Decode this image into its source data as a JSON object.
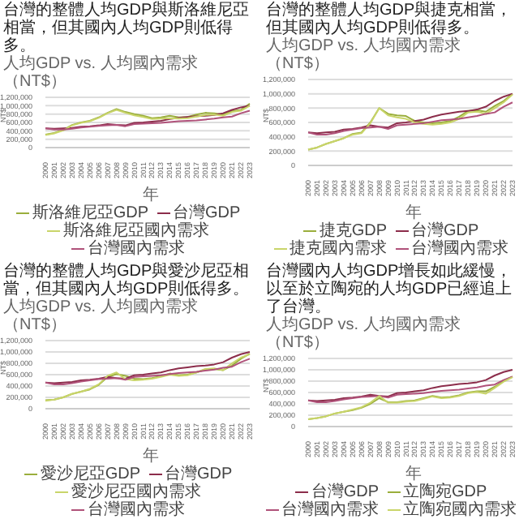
{
  "chart_data": [
    {
      "type": "line",
      "title": "台灣的整體人均GDP與斯洛維尼亞相當，但其國內人均GDP則低得多。",
      "subtitle": "人均GDP vs. 人均國內需求（NT$）",
      "xlabel": "年",
      "ylabel": "NT$",
      "categories": [
        "2000",
        "2001",
        "2002",
        "2003",
        "2004",
        "2005",
        "2006",
        "2007",
        "2008",
        "2009",
        "2010",
        "2011",
        "2012",
        "2013",
        "2014",
        "2015",
        "2016",
        "2017",
        "2018",
        "2019",
        "2020",
        "2021",
        "2022",
        "2023"
      ],
      "series": [
        {
          "name": "斯洛維尼亞GDP",
          "color": "#9aae3c",
          "values": [
            310000,
            350000,
            420000,
            540000,
            600000,
            640000,
            720000,
            830000,
            920000,
            850000,
            800000,
            760000,
            700000,
            720000,
            760000,
            720000,
            730000,
            790000,
            830000,
            820000,
            790000,
            870000,
            900000,
            1050000
          ]
        },
        {
          "name": "台灣GDP",
          "color": "#8c2d4b",
          "values": [
            460000,
            450000,
            460000,
            470000,
            500000,
            510000,
            530000,
            560000,
            540000,
            530000,
            590000,
            600000,
            620000,
            640000,
            680000,
            710000,
            730000,
            750000,
            760000,
            780000,
            820000,
            900000,
            960000,
            1000000
          ]
        },
        {
          "name": "斯洛維尼亞國內需求",
          "color": "#c9d56a",
          "values": [
            300000,
            340000,
            410000,
            530000,
            590000,
            630000,
            710000,
            820000,
            900000,
            830000,
            770000,
            730000,
            680000,
            690000,
            700000,
            690000,
            700000,
            740000,
            780000,
            790000,
            760000,
            850000,
            880000,
            1000000
          ]
        },
        {
          "name": "台灣國內需求",
          "color": "#b0527a",
          "values": [
            460000,
            430000,
            430000,
            450000,
            480000,
            500000,
            520000,
            530000,
            540000,
            510000,
            560000,
            570000,
            580000,
            590000,
            610000,
            630000,
            640000,
            650000,
            670000,
            690000,
            720000,
            740000,
            820000,
            880000
          ]
        }
      ],
      "ylim": [
        0,
        1200000
      ],
      "yticks": [
        {
          "value": 0,
          "label": "0"
        },
        {
          "value": 200000,
          "label": "200,000"
        },
        {
          "value": 400000,
          "label": "400,000"
        },
        {
          "value": 600000,
          "label": "600,000"
        },
        {
          "value": 800000,
          "label": "800,000"
        },
        {
          "value": 1000000,
          "label": "1,000,000"
        },
        {
          "value": 1200000,
          "label": "1,200,000"
        }
      ],
      "grid": "y",
      "legend": "bottom"
    },
    {
      "type": "line",
      "title": "台灣的整體人均GDP與捷克相當，但其國內人均GDP則低得多。",
      "subtitle": "人均GDP vs. 人均國內需求（NT$）",
      "xlabel": "年",
      "ylabel": "NT$",
      "categories": [
        "2000",
        "2001",
        "2002",
        "2003",
        "2004",
        "2005",
        "2006",
        "2007",
        "2008",
        "2009",
        "2010",
        "2011",
        "2012",
        "2013",
        "2014",
        "2015",
        "2016",
        "2017",
        "2018",
        "2019",
        "2020",
        "2021",
        "2022",
        "2023"
      ],
      "series": [
        {
          "name": "捷克GDP",
          "color": "#9aae3c",
          "values": [
            220000,
            250000,
            300000,
            340000,
            380000,
            440000,
            460000,
            600000,
            800000,
            720000,
            700000,
            690000,
            620000,
            600000,
            590000,
            600000,
            620000,
            680000,
            760000,
            770000,
            750000,
            830000,
            900000,
            1000000
          ]
        },
        {
          "name": "台灣GDP",
          "color": "#8c2d4b",
          "values": [
            460000,
            450000,
            460000,
            470000,
            500000,
            510000,
            530000,
            560000,
            540000,
            530000,
            590000,
            600000,
            620000,
            640000,
            680000,
            710000,
            730000,
            750000,
            760000,
            780000,
            820000,
            900000,
            960000,
            1000000
          ]
        },
        {
          "name": "捷克國內需求",
          "color": "#c9d56a",
          "values": [
            220000,
            250000,
            300000,
            340000,
            380000,
            430000,
            450000,
            590000,
            800000,
            700000,
            670000,
            650000,
            600000,
            580000,
            570000,
            580000,
            600000,
            650000,
            740000,
            750000,
            720000,
            800000,
            880000,
            990000
          ]
        },
        {
          "name": "台灣國內需求",
          "color": "#b0527a",
          "values": [
            460000,
            430000,
            430000,
            450000,
            480000,
            500000,
            520000,
            530000,
            540000,
            510000,
            560000,
            570000,
            580000,
            590000,
            610000,
            630000,
            640000,
            650000,
            670000,
            690000,
            720000,
            740000,
            820000,
            880000
          ]
        }
      ],
      "ylim": [
        0,
        1200000
      ],
      "yticks": [
        {
          "value": 0,
          "label": "0"
        },
        {
          "value": 200000,
          "label": "200,000"
        },
        {
          "value": 400000,
          "label": "400,000"
        },
        {
          "value": 600000,
          "label": "600,000"
        },
        {
          "value": 800000,
          "label": "800,000"
        },
        {
          "value": 1000000,
          "label": "1,000,000"
        },
        {
          "value": 1200000,
          "label": "1,200,000"
        }
      ],
      "grid": "y",
      "legend": "bottom"
    },
    {
      "type": "line",
      "title": "台灣的整體人均GDP與愛沙尼亞相當，但其國內人均GDP則低得多。",
      "subtitle": "人均GDP vs. 人均國內需求（NT$）",
      "xlabel": "年",
      "ylabel": "NT$",
      "categories": [
        "2000",
        "2001",
        "2002",
        "2003",
        "2004",
        "2005",
        "2006",
        "2007",
        "2008",
        "2009",
        "2010",
        "2011",
        "2012",
        "2013",
        "2014",
        "2015",
        "2016",
        "2017",
        "2018",
        "2019",
        "2020",
        "2021",
        "2022",
        "2023"
      ],
      "series": [
        {
          "name": "愛沙尼亞GDP",
          "color": "#9aae3c",
          "values": [
            150000,
            160000,
            200000,
            260000,
            300000,
            340000,
            420000,
            560000,
            610000,
            580000,
            530000,
            520000,
            540000,
            570000,
            620000,
            590000,
            600000,
            640000,
            690000,
            700000,
            680000,
            760000,
            880000,
            970000
          ]
        },
        {
          "name": "台灣GDP",
          "color": "#8c2d4b",
          "values": [
            460000,
            450000,
            460000,
            470000,
            500000,
            510000,
            530000,
            560000,
            540000,
            530000,
            590000,
            600000,
            620000,
            640000,
            680000,
            710000,
            730000,
            750000,
            760000,
            780000,
            820000,
            900000,
            960000,
            1000000
          ]
        },
        {
          "name": "愛沙尼亞國內需求",
          "color": "#c9d56a",
          "values": [
            140000,
            160000,
            200000,
            260000,
            300000,
            350000,
            430000,
            580000,
            640000,
            520000,
            500000,
            510000,
            530000,
            560000,
            600000,
            580000,
            590000,
            640000,
            700000,
            710000,
            680000,
            800000,
            900000,
            960000
          ]
        },
        {
          "name": "台灣國內需求",
          "color": "#b0527a",
          "values": [
            460000,
            430000,
            430000,
            450000,
            480000,
            500000,
            520000,
            530000,
            540000,
            510000,
            560000,
            570000,
            580000,
            590000,
            610000,
            630000,
            640000,
            650000,
            670000,
            690000,
            720000,
            740000,
            820000,
            880000
          ]
        }
      ],
      "ylim": [
        0,
        1200000
      ],
      "yticks": [
        {
          "value": 0,
          "label": "0"
        },
        {
          "value": 200000,
          "label": "200,000"
        },
        {
          "value": 400000,
          "label": "400,000"
        },
        {
          "value": 600000,
          "label": "600,000"
        },
        {
          "value": 800000,
          "label": "800,000"
        },
        {
          "value": 1000000,
          "label": "1,000,000"
        },
        {
          "value": 1200000,
          "label": "1,200,000"
        }
      ],
      "grid": "y",
      "legend": "bottom"
    },
    {
      "type": "line",
      "title": "台灣國內人均GDP增長如此緩慢，以至於立陶宛的人均GDP已經追上了台灣。",
      "subtitle": "人均GDP vs. 人均國內需求（NT$）",
      "xlabel": "年",
      "ylabel": "NT$",
      "categories": [
        "2000",
        "2001",
        "2002",
        "2003",
        "2004",
        "2005",
        "2006",
        "2007",
        "2008",
        "2009",
        "2010",
        "2011",
        "2012",
        "2013",
        "2014",
        "2015",
        "2016",
        "2017",
        "2018",
        "2019",
        "2020",
        "2021",
        "2022",
        "2023"
      ],
      "series": [
        {
          "name": "台灣GDP",
          "color": "#8c2d4b",
          "values": [
            460000,
            450000,
            460000,
            470000,
            500000,
            510000,
            530000,
            560000,
            540000,
            530000,
            590000,
            600000,
            620000,
            640000,
            680000,
            710000,
            730000,
            750000,
            760000,
            780000,
            820000,
            900000,
            960000,
            1000000
          ]
        },
        {
          "name": "立陶宛GDP",
          "color": "#9aae3c",
          "values": [
            130000,
            150000,
            180000,
            230000,
            260000,
            290000,
            330000,
            400000,
            500000,
            430000,
            430000,
            450000,
            460000,
            500000,
            540000,
            510000,
            520000,
            550000,
            600000,
            620000,
            620000,
            700000,
            800000,
            880000
          ]
        },
        {
          "name": "台灣國內需求",
          "color": "#b0527a",
          "values": [
            460000,
            430000,
            430000,
            450000,
            480000,
            500000,
            520000,
            530000,
            540000,
            510000,
            560000,
            570000,
            580000,
            590000,
            610000,
            630000,
            640000,
            650000,
            670000,
            690000,
            720000,
            740000,
            820000,
            880000
          ]
        },
        {
          "name": "立陶宛國內需求",
          "color": "#c9d56a",
          "values": [
            130000,
            150000,
            180000,
            230000,
            260000,
            300000,
            340000,
            420000,
            540000,
            420000,
            420000,
            440000,
            450000,
            490000,
            530000,
            500000,
            510000,
            540000,
            590000,
            610000,
            580000,
            680000,
            790000,
            870000
          ]
        }
      ],
      "ylim": [
        0,
        1200000
      ],
      "yticks": [
        {
          "value": 0,
          "label": "0"
        },
        {
          "value": 200000,
          "label": "200,000"
        },
        {
          "value": 400000,
          "label": "400,000"
        },
        {
          "value": 600000,
          "label": "600,000"
        },
        {
          "value": 800000,
          "label": "800,000"
        },
        {
          "value": 1000000,
          "label": "1,000,000"
        },
        {
          "value": 1200000,
          "label": "1,200,000"
        }
      ],
      "grid": "y",
      "legend": "bottom"
    }
  ]
}
